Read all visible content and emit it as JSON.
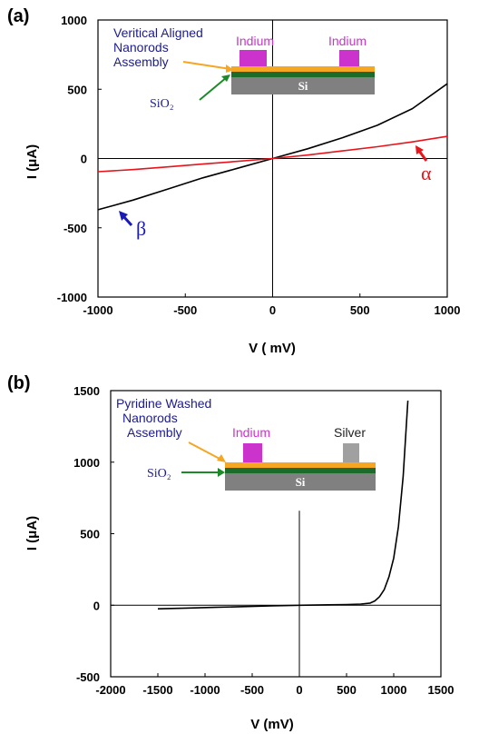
{
  "panels": [
    {
      "label": "(a)",
      "xlabel": "V ( mV)",
      "ylabel": "I (μA)",
      "inset": {
        "assembly_label_lines": [
          "Veritical Aligned",
          "Nanorods",
          "Assembly"
        ],
        "oxide_label": "SiO₂",
        "substrate_label": "Si",
        "contact_labels": [
          "Indium",
          "Indium"
        ],
        "colors": {
          "assembly_text": "#1c1c8c",
          "contact": "#cc33cc",
          "contact_text": "#cc33cc",
          "nanorods": "#f5a623",
          "oxide": "#1d6b2a",
          "substrate": "#808080"
        }
      },
      "annotations": [
        {
          "text": "α",
          "color": "#e8141b"
        },
        {
          "text": "β",
          "color": "#1a1ab8"
        }
      ]
    },
    {
      "label": "(b)",
      "xlabel": "V (mV)",
      "ylabel": "I (μA)",
      "inset": {
        "assembly_label_lines": [
          "Pyridine Washed",
          "Nanorods",
          "Assembly"
        ],
        "oxide_label": "SiO₂",
        "substrate_label": "Si",
        "contact_labels": [
          "Indium",
          "Silver"
        ],
        "colors": {
          "assembly_text": "#1c1c8c",
          "contact": "#cc33cc",
          "contact_text": "#cc33cc",
          "silver": "#a0a0a0",
          "silver_text": "#222222",
          "nanorods": "#f5a623",
          "oxide": "#1d6b2a",
          "substrate": "#808080"
        }
      }
    }
  ],
  "chart_data": [
    {
      "type": "line",
      "xlabel": "V ( mV)",
      "ylabel": "I (μA)",
      "xlim": [
        -1000,
        1000
      ],
      "ylim": [
        -1000,
        1000
      ],
      "xticks": [
        "-1000",
        "-500",
        "0",
        "500",
        "1000"
      ],
      "yticks": [
        "1000",
        "500",
        "0",
        "-500",
        "-1000"
      ],
      "xtick_values": [
        -1000,
        -500,
        0,
        500,
        1000
      ],
      "ytick_values": [
        1000,
        500,
        0,
        -500,
        -1000
      ],
      "series": [
        {
          "name": "β",
          "color": "#000000",
          "x": [
            -1000,
            -800,
            -600,
            -400,
            -200,
            0,
            200,
            400,
            600,
            800,
            1000
          ],
          "y": [
            -370,
            -300,
            -220,
            -140,
            -70,
            0,
            70,
            150,
            240,
            360,
            540
          ]
        },
        {
          "name": "α",
          "color": "#e8141b",
          "x": [
            -1000,
            -800,
            -600,
            -400,
            -200,
            0,
            200,
            400,
            600,
            800,
            1000
          ],
          "y": [
            -95,
            -80,
            -60,
            -40,
            -20,
            0,
            25,
            55,
            85,
            120,
            160
          ]
        }
      ]
    },
    {
      "type": "line",
      "xlabel": "V (mV)",
      "ylabel": "I (μA)",
      "xlim": [
        -2000,
        1500
      ],
      "ylim": [
        -500,
        1500
      ],
      "xticks": [
        "-2000",
        "-1500",
        "-1000",
        "-500",
        "0",
        "500",
        "1000",
        "1500"
      ],
      "yticks": [
        "1500",
        "1000",
        "500",
        "0",
        "-500"
      ],
      "xtick_values": [
        -2000,
        -1500,
        -1000,
        -500,
        0,
        500,
        1000,
        1500
      ],
      "ytick_values": [
        1500,
        1000,
        500,
        0,
        -500
      ],
      "series": [
        {
          "name": "",
          "color": "#000000",
          "x": [
            -1500,
            -1200,
            -900,
            -600,
            -300,
            0,
            300,
            500,
            650,
            750,
            800,
            850,
            900,
            950,
            1000,
            1050,
            1100,
            1150
          ],
          "y": [
            -25,
            -20,
            -15,
            -10,
            -5,
            0,
            3,
            5,
            8,
            15,
            30,
            60,
            110,
            200,
            330,
            550,
            900,
            1430
          ]
        }
      ]
    }
  ]
}
